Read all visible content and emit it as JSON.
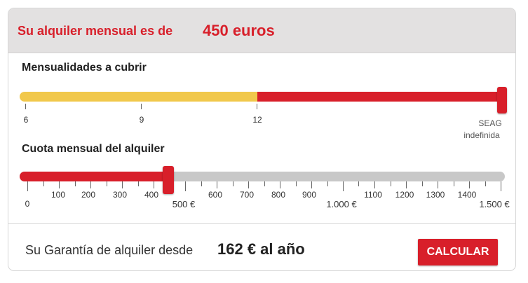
{
  "header": {
    "label": "Su alquiler mensual es de",
    "value": "450 euros"
  },
  "months_slider": {
    "title": "Mensualidades a cubrir",
    "ticks": [
      "6",
      "9",
      "12"
    ],
    "end_label_line1": "SEAG",
    "end_label_line2": "indefinida",
    "segment_color_low": "#f1c84b",
    "segment_color_high": "#d81f2a",
    "split_at": "12",
    "selected": "SEAG indefinida"
  },
  "rent_slider": {
    "title": "Cuota mensual del alquiler",
    "small_ticks": [
      "0",
      "100",
      "200",
      "300",
      "400",
      "600",
      "700",
      "800",
      "900",
      "1100",
      "1200",
      "1300",
      "1400"
    ],
    "major_ticks": [
      "500 €",
      "1.000 €",
      "1.500 €"
    ],
    "value": 450,
    "min": 0,
    "max": 1500,
    "fill_color": "#d81f2a",
    "rest_color": "#c8c8c8"
  },
  "footer": {
    "text": "Su Garantía de alquiler desde",
    "value": "162 € al año",
    "button_label": "CALCULAR"
  }
}
